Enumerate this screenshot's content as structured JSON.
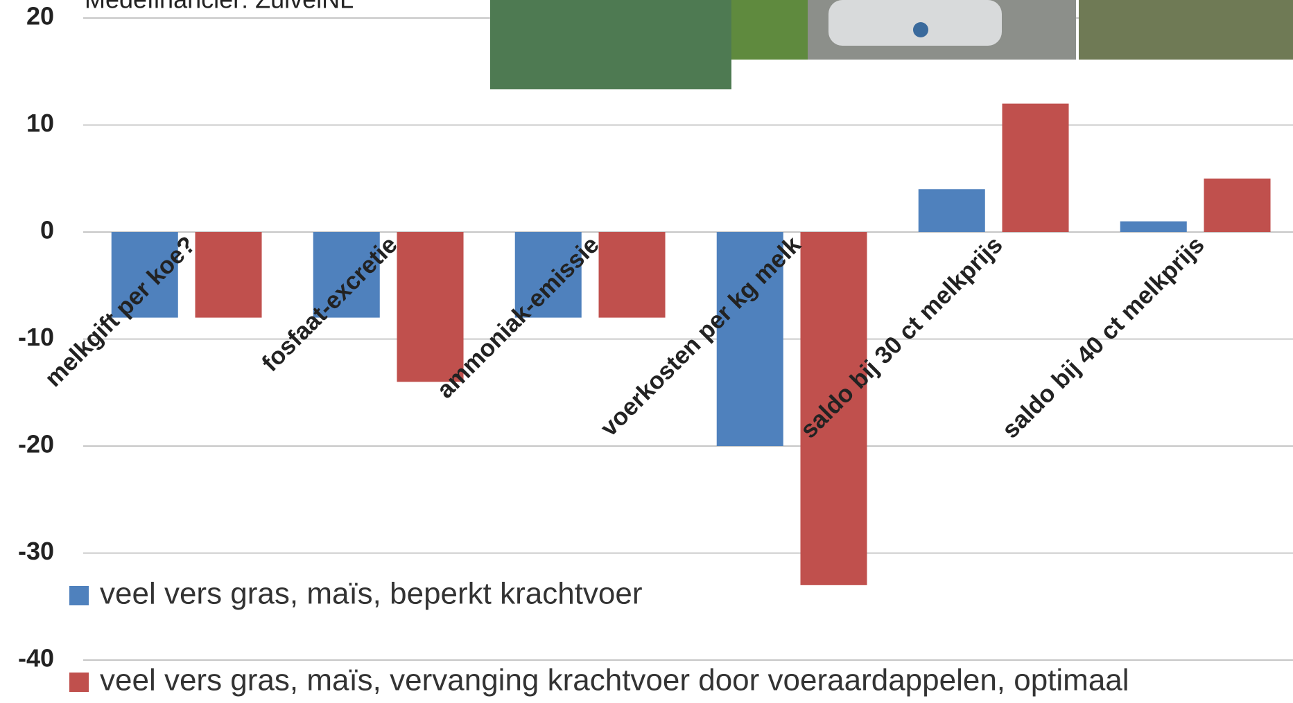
{
  "header": {
    "text": "Medefinancier: ZuivelNL"
  },
  "chart_data": {
    "type": "bar",
    "categories": [
      "melkgift per koe?",
      "fosfaat-excretie",
      "ammoniak-emissie",
      "voerkosten per kg melk",
      "saldo bij 30 ct melkprijs",
      "saldo bij 40 ct melkprijs"
    ],
    "series": [
      {
        "name": "veel vers gras, maïs, beperkt krachtvoer",
        "color": "#4f81bd",
        "values": [
          -8,
          -8,
          -8,
          -20,
          4,
          1
        ]
      },
      {
        "name": "veel vers gras, maïs, vervanging krachtvoer door voeraardappelen, optimaal",
        "color": "#c0504d",
        "values": [
          -8,
          -14,
          -8,
          -33,
          12,
          5
        ]
      }
    ],
    "ylim": [
      -40,
      20
    ],
    "yticks": [
      -40,
      -30,
      -20,
      -10,
      0,
      10,
      20
    ],
    "grid": true,
    "legend": "bottom-left"
  }
}
